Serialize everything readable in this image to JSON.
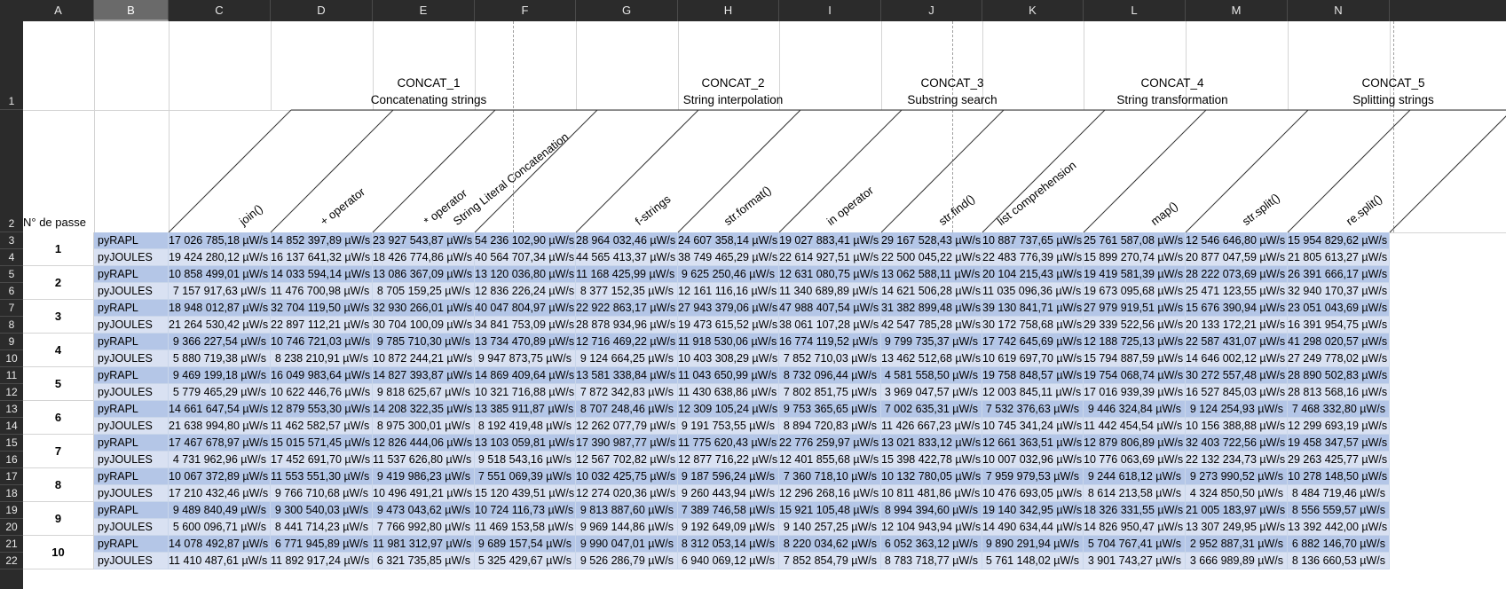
{
  "columns": [
    "A",
    "B",
    "C",
    "D",
    "E",
    "F",
    "G",
    "H",
    "I",
    "J",
    "K",
    "L",
    "M",
    "N"
  ],
  "selected_column": "B",
  "row_numbers": [
    "1",
    "2",
    "3",
    "4",
    "5",
    "6",
    "7",
    "8",
    "9",
    "10",
    "11",
    "12",
    "13",
    "14",
    "15",
    "16",
    "17",
    "18",
    "19",
    "20",
    "21",
    "22"
  ],
  "header": {
    "passe_label": "N° de passe",
    "groups": [
      {
        "code": "CONCAT_1",
        "name": "Concatenating strings"
      },
      {
        "code": "CONCAT_2",
        "name": "String interpolation"
      },
      {
        "code": "CONCAT_3",
        "name": "Substring search"
      },
      {
        "code": "CONCAT_4",
        "name": "String transformation"
      },
      {
        "code": "CONCAT_5",
        "name": "Splitting strings"
      }
    ],
    "subcolumns": [
      "join()",
      "+ operator",
      "* operator",
      "String Literal Concatenation",
      "f-strings",
      "str.format()",
      "in operator",
      "str.find()",
      "list comprehension",
      "map()",
      "str.split()",
      "re.split()"
    ]
  },
  "passes": [
    {
      "label": "1",
      "rows": [
        {
          "tool": "pyRAPL",
          "values": [
            "17 026 785,18 µW/s",
            "14 852 397,89 µW/s",
            "23 927 543,87 µW/s",
            "54 236 102,90 µW/s",
            "28 964 032,46 µW/s",
            "24 607 358,14 µW/s",
            "19 027 883,41 µW/s",
            "29 167 528,43 µW/s",
            "10 887 737,65 µW/s",
            "25 761 587,08 µW/s",
            "12 546 646,80 µW/s",
            "15 954 829,62 µW/s"
          ]
        },
        {
          "tool": "pyJOULES",
          "values": [
            "19 424 280,12 µW/s",
            "16 137 641,32 µW/s",
            "18 426 774,86 µW/s",
            "40 564 707,34 µW/s",
            "44 565 413,37 µW/s",
            "38 749 465,29 µW/s",
            "22 614 927,51 µW/s",
            "22 500 045,22 µW/s",
            "22 483 776,39 µW/s",
            "15 899 270,74 µW/s",
            "20 877 047,59 µW/s",
            "21 805 613,27 µW/s"
          ]
        }
      ]
    },
    {
      "label": "2",
      "rows": [
        {
          "tool": "pyRAPL",
          "values": [
            "10 858 499,01 µW/s",
            "14 033 594,14 µW/s",
            "13 086 367,09 µW/s",
            "13 120 036,80 µW/s",
            "11 168 425,99 µW/s",
            "9 625 250,46 µW/s",
            "12 631 080,75 µW/s",
            "13 062 588,11 µW/s",
            "20 104 215,43 µW/s",
            "19 419 581,39 µW/s",
            "28 222 073,69 µW/s",
            "26 391 666,17 µW/s"
          ]
        },
        {
          "tool": "pyJOULES",
          "values": [
            "7 157 917,63 µW/s",
            "11 476 700,98 µW/s",
            "8 705 159,25 µW/s",
            "12 836 226,24 µW/s",
            "8 377 152,35 µW/s",
            "12 161 116,16 µW/s",
            "11 340 689,89 µW/s",
            "14 621 506,28 µW/s",
            "11 035 096,36 µW/s",
            "19 673 095,68 µW/s",
            "25 471 123,55 µW/s",
            "32 940 170,37 µW/s"
          ]
        }
      ]
    },
    {
      "label": "3",
      "rows": [
        {
          "tool": "pyRAPL",
          "values": [
            "18 948 012,87 µW/s",
            "32 704 119,50 µW/s",
            "32 930 266,01 µW/s",
            "40 047 804,97 µW/s",
            "22 922 863,17 µW/s",
            "27 943 379,06 µW/s",
            "47 988 407,54 µW/s",
            "31 382 899,48 µW/s",
            "39 130 841,71 µW/s",
            "27 979 919,51 µW/s",
            "15 676 390,94 µW/s",
            "23 051 043,69 µW/s"
          ]
        },
        {
          "tool": "pyJOULES",
          "values": [
            "21 264 530,42 µW/s",
            "22 897 112,21 µW/s",
            "30 704 100,09 µW/s",
            "34 841 753,09 µW/s",
            "28 878 934,96 µW/s",
            "19 473 615,52 µW/s",
            "38 061 107,28 µW/s",
            "42 547 785,28 µW/s",
            "30 172 758,68 µW/s",
            "29 339 522,56 µW/s",
            "20 133 172,21 µW/s",
            "16 391 954,75 µW/s"
          ]
        }
      ]
    },
    {
      "label": "4",
      "rows": [
        {
          "tool": "pyRAPL",
          "values": [
            "9 366 227,54 µW/s",
            "10 746 721,03 µW/s",
            "9 785 710,30 µW/s",
            "13 734 470,89 µW/s",
            "12 716 469,22 µW/s",
            "11 918 530,06 µW/s",
            "16 774 119,52 µW/s",
            "9 799 735,37 µW/s",
            "17 742 645,69 µW/s",
            "12 188 725,13 µW/s",
            "22 587 431,07 µW/s",
            "41 298 020,57 µW/s"
          ]
        },
        {
          "tool": "pyJOULES",
          "values": [
            "5 880 719,38 µW/s",
            "8 238 210,91 µW/s",
            "10 872 244,21 µW/s",
            "9 947 873,75 µW/s",
            "9 124 664,25 µW/s",
            "10 403 308,29 µW/s",
            "7 852 710,03 µW/s",
            "13 462 512,68 µW/s",
            "10 619 697,70 µW/s",
            "15 794 887,59 µW/s",
            "14 646 002,12 µW/s",
            "27 249 778,02 µW/s"
          ]
        }
      ]
    },
    {
      "label": "5",
      "rows": [
        {
          "tool": "pyRAPL",
          "values": [
            "9 469 199,18 µW/s",
            "16 049 983,64 µW/s",
            "14 827 393,87 µW/s",
            "14 869 409,64 µW/s",
            "13 581 338,84 µW/s",
            "11 043 650,99 µW/s",
            "8 732 096,44 µW/s",
            "4 581 558,50 µW/s",
            "19 758 848,57 µW/s",
            "19 754 068,74 µW/s",
            "30 272 557,48 µW/s",
            "28 890 502,83 µW/s"
          ]
        },
        {
          "tool": "pyJOULES",
          "values": [
            "5 779 465,29 µW/s",
            "10 622 446,76 µW/s",
            "9 818 625,67 µW/s",
            "10 321 716,88 µW/s",
            "7 872 342,83 µW/s",
            "11 430 638,86 µW/s",
            "7 802 851,75 µW/s",
            "3 969 047,57 µW/s",
            "12 003 845,11 µW/s",
            "17 016 939,39 µW/s",
            "16 527 845,03 µW/s",
            "28 813 568,16 µW/s"
          ]
        }
      ]
    },
    {
      "label": "6",
      "rows": [
        {
          "tool": "pyRAPL",
          "values": [
            "14 661 647,54 µW/s",
            "12 879 553,30 µW/s",
            "14 208 322,35 µW/s",
            "13 385 911,87 µW/s",
            "8 707 248,46 µW/s",
            "12 309 105,24 µW/s",
            "9 753 365,65 µW/s",
            "7 002 635,31 µW/s",
            "7 532 376,63 µW/s",
            "9 446 324,84 µW/s",
            "9 124 254,93 µW/s",
            "7 468 332,80 µW/s"
          ]
        },
        {
          "tool": "pyJOULES",
          "values": [
            "21 638 994,80 µW/s",
            "11 462 582,57 µW/s",
            "8 975 300,01 µW/s",
            "8 192 419,48 µW/s",
            "12 262 077,79 µW/s",
            "9 191 753,55 µW/s",
            "8 894 720,83 µW/s",
            "11 426 667,23 µW/s",
            "10 745 341,24 µW/s",
            "11 442 454,54 µW/s",
            "10 156 388,88 µW/s",
            "12 299 693,19 µW/s"
          ]
        }
      ]
    },
    {
      "label": "7",
      "rows": [
        {
          "tool": "pyRAPL",
          "values": [
            "17 467 678,97 µW/s",
            "15 015 571,45 µW/s",
            "12 826 444,06 µW/s",
            "13 103 059,81 µW/s",
            "17 390 987,77 µW/s",
            "11 775 620,43 µW/s",
            "22 776 259,97 µW/s",
            "13 021 833,12 µW/s",
            "12 661 363,51 µW/s",
            "12 879 806,89 µW/s",
            "32 403 722,56 µW/s",
            "19 458 347,57 µW/s"
          ]
        },
        {
          "tool": "pyJOULES",
          "values": [
            "4 731 962,96 µW/s",
            "17 452 691,70 µW/s",
            "11 537 626,80 µW/s",
            "9 518 543,16 µW/s",
            "12 567 702,82 µW/s",
            "12 877 716,22 µW/s",
            "12 401 855,68 µW/s",
            "15 398 422,78 µW/s",
            "10 007 032,96 µW/s",
            "10 776 063,69 µW/s",
            "22 132 234,73 µW/s",
            "29 263 425,77 µW/s"
          ]
        }
      ]
    },
    {
      "label": "8",
      "rows": [
        {
          "tool": "pyRAPL",
          "values": [
            "10 067 372,89 µW/s",
            "11 553 551,30 µW/s",
            "9 419 986,23 µW/s",
            "7 551 069,39 µW/s",
            "10 032 425,75 µW/s",
            "9 187 596,24 µW/s",
            "7 360 718,10 µW/s",
            "10 132 780,05 µW/s",
            "7 959 979,53 µW/s",
            "9 244 618,12 µW/s",
            "9 273 990,52 µW/s",
            "10 278 148,50 µW/s"
          ]
        },
        {
          "tool": "pyJOULES",
          "values": [
            "17 210 432,46 µW/s",
            "9 766 710,68 µW/s",
            "10 496 491,21 µW/s",
            "15 120 439,51 µW/s",
            "12 274 020,36 µW/s",
            "9 260 443,94 µW/s",
            "12 296 268,16 µW/s",
            "10 811 481,86 µW/s",
            "10 476 693,05 µW/s",
            "8 614 213,58 µW/s",
            "4 324 850,50 µW/s",
            "8 484 719,46 µW/s"
          ]
        }
      ]
    },
    {
      "label": "9",
      "rows": [
        {
          "tool": "pyRAPL",
          "values": [
            "9 489 840,49 µW/s",
            "9 300 540,03 µW/s",
            "9 473 043,62 µW/s",
            "10 724 116,73 µW/s",
            "9 813 887,60 µW/s",
            "7 389 746,58 µW/s",
            "15 921 105,48 µW/s",
            "8 994 394,60 µW/s",
            "19 140 342,95 µW/s",
            "18 326 331,55 µW/s",
            "21 005 183,97 µW/s",
            "8 556 559,57 µW/s"
          ]
        },
        {
          "tool": "pyJOULES",
          "values": [
            "5 600 096,71 µW/s",
            "8 441 714,23 µW/s",
            "7 766 992,80 µW/s",
            "11 469 153,58 µW/s",
            "9 969 144,86 µW/s",
            "9 192 649,09 µW/s",
            "9 140 257,25 µW/s",
            "12 104 943,94 µW/s",
            "14 490 634,44 µW/s",
            "14 826 950,47 µW/s",
            "13 307 249,95 µW/s",
            "13 392 442,00 µW/s"
          ]
        }
      ]
    },
    {
      "label": "10",
      "rows": [
        {
          "tool": "pyRAPL",
          "values": [
            "14 078 492,87 µW/s",
            "6 771 945,89 µW/s",
            "11 981 312,97 µW/s",
            "9 689 157,54 µW/s",
            "9 990 047,01 µW/s",
            "8 312 053,14 µW/s",
            "8 220 034,62 µW/s",
            "6 052 363,12 µW/s",
            "9 890 291,94 µW/s",
            "5 704 767,41 µW/s",
            "2 952 887,31 µW/s",
            "6 882 146,70 µW/s"
          ]
        },
        {
          "tool": "pyJOULES",
          "values": [
            "11 410 487,61 µW/s",
            "11 892 917,24 µW/s",
            "6 321 735,85 µW/s",
            "5 325 429,67 µW/s",
            "9 526 286,79 µW/s",
            "6 940 069,12 µW/s",
            "7 852 854,79 µW/s",
            "8 783 718,77 µW/s",
            "5 761 148,02 µW/s",
            "3 901 743,27 µW/s",
            "3 666 989,89 µW/s",
            "8 136 660,53 µW/s"
          ]
        }
      ]
    }
  ]
}
